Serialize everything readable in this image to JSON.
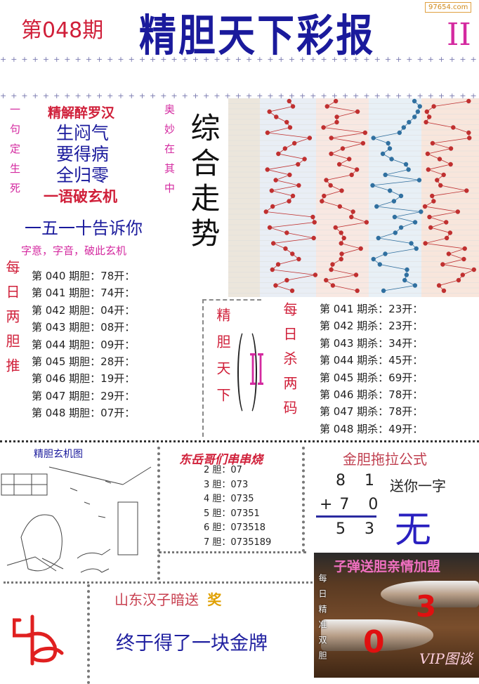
{
  "header": {
    "issue": "第048期",
    "title": "精胆天下彩报",
    "volume": "II",
    "watermark": "97654.com"
  },
  "riddle": {
    "left_vertical": "一句定生死",
    "right_vertical": "奥妙在其中",
    "heading": "精解醉罗汉",
    "lines": [
      "生闷气",
      "要得病",
      "全归零"
    ],
    "footer": "一语破玄机",
    "tell": "一五一十告诉你",
    "hint": "字意，字音，破此玄机"
  },
  "trend": {
    "label": "综合走势"
  },
  "daily_two": {
    "vertical": "每日两胆推",
    "items": [
      "第 040 期胆：78开：",
      "第 041 期胆：74开：",
      "第 042 期胆：04开：",
      "第 043 期胆：08开：",
      "第 044 期胆：09开：",
      "第 045 期胆：28开：",
      "第 046 期胆：19开：",
      "第 047 期胆：29开：",
      "第 048 期胆：07开："
    ]
  },
  "center_box": {
    "vertical": "精胆天下",
    "mark": "II"
  },
  "daily_kill": {
    "vertical": "每日杀两码",
    "items": [
      "第 041 期杀：23开：",
      "第 042 期杀：23开：",
      "第 043 期杀：34开：",
      "第 044 期杀：45开：",
      "第 045 期杀：69开：",
      "第 046 期杀：78开：",
      "第 047 期杀：78开：",
      "第 048 期杀：49开："
    ]
  },
  "mystery_image": {
    "title": "精胆玄机图"
  },
  "skewer": {
    "title": "东岳哥们串串烧",
    "items": [
      "2 胆：07",
      "3 胆：073",
      "4 胆：0735",
      "5 胆：07351",
      "6 胆：073518",
      "7 胆：0735189"
    ]
  },
  "formula": {
    "title": "金胆拖拉公式",
    "row1": "8 1",
    "row2": "+7 0",
    "result": "5 3",
    "gift_label": "送你一字",
    "gift_char": "无"
  },
  "award": {
    "title": "山东汉子暗送",
    "badge": "奖",
    "message": "终于得了一块金牌"
  },
  "bullet": {
    "title": "子弹送胆亲情加盟",
    "vertical": "每日精准双胆",
    "num1": "3",
    "num2": "0",
    "stamp": "VIP图谈"
  },
  "colors": {
    "red": "#d0203a",
    "blue": "#1a1a9c",
    "magenta": "#d42aa0"
  }
}
